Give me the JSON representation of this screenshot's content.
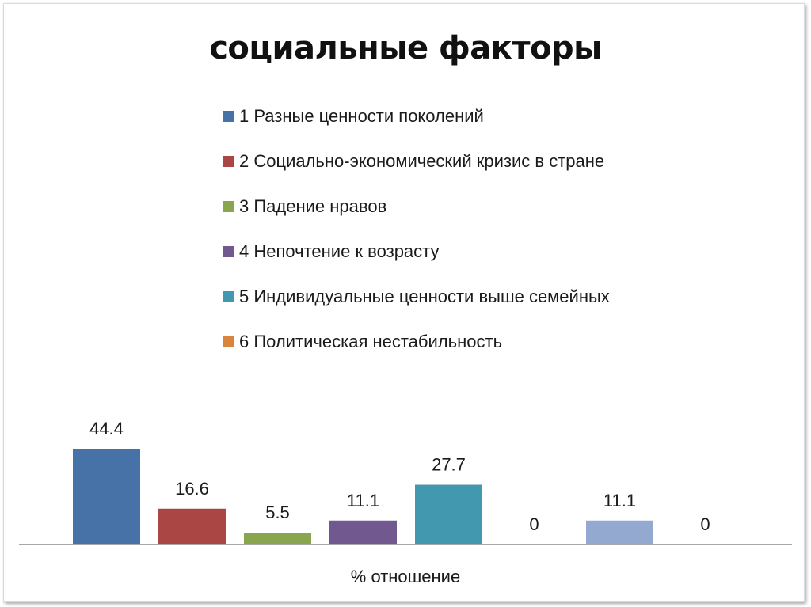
{
  "chart_data": {
    "type": "bar",
    "title": "социальные факторы",
    "xlabel": "% отношение",
    "ylabel": "",
    "ylim": [
      0,
      50
    ],
    "grid": false,
    "legend_placement": "top",
    "legend": [
      {
        "label": "1 Разные ценности поколений",
        "color": "#4672a8"
      },
      {
        "label": "2  Социально-экономический кризис в стране",
        "color": "#aa4643"
      },
      {
        "label": "3  Падение нравов",
        "color": "#89a54e"
      },
      {
        "label": "4 Непочтение к возрасту",
        "color": "#71588f"
      },
      {
        "label": "5 Индивидуальные ценности выше семейных",
        "color": "#4198af"
      },
      {
        "label": "6 Политическая нестабильность",
        "color": "#db843d"
      }
    ],
    "bars": [
      {
        "value": 44.4,
        "label": "44.4",
        "color": "#4672a8"
      },
      {
        "value": 16.6,
        "label": "16.6",
        "color": "#aa4643"
      },
      {
        "value": 5.5,
        "label": "5.5",
        "color": "#89a54e"
      },
      {
        "value": 11.1,
        "label": "11.1",
        "color": "#71588f"
      },
      {
        "value": 27.7,
        "label": "27.7",
        "color": "#4198af"
      },
      {
        "value": 0,
        "label": "0",
        "color": "#db843d"
      },
      {
        "value": 11.1,
        "label": "11.1",
        "color": "#93a9cf"
      },
      {
        "value": 0,
        "label": "0",
        "color": "#d19392"
      }
    ]
  }
}
